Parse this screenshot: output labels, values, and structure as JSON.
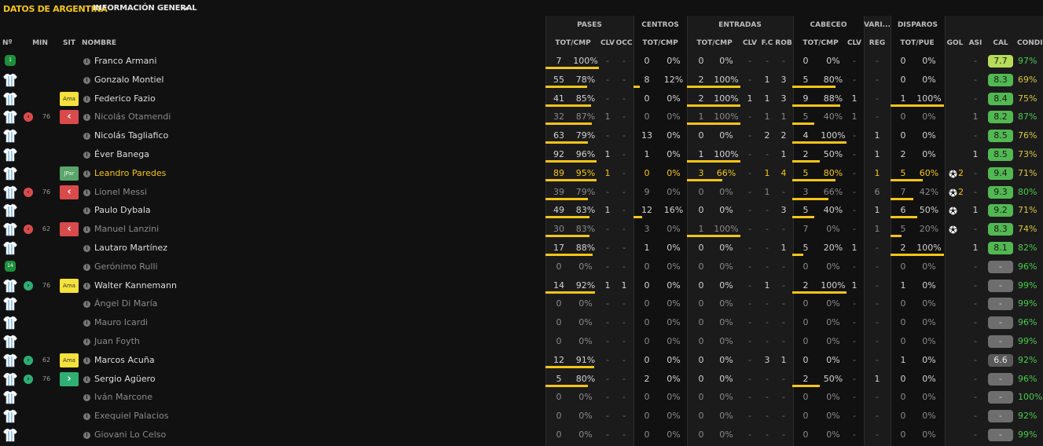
{
  "header": {
    "tab_active": "DATOS DE ARGENTINA",
    "tab_secondary": "INFORMACIÓN GENERAL"
  },
  "groups": {
    "pases": "PASES",
    "centros": "CENTROS",
    "entradas": "ENTRADAS",
    "cabeceo": "CABECEO",
    "varios": "VARI...",
    "disparos": "DISPAROS"
  },
  "columns": {
    "num": "Nº",
    "min": "MIN",
    "sit": "SIT",
    "nombre": "NOMBRE",
    "pases_totcmp": "TOT/CMP",
    "pases_clv": "CLV",
    "pases_occ": "OCC",
    "centros_totcmp": "TOT/CMP",
    "entradas_totcmp": "TOT/CMP",
    "entradas_clv": "CLV",
    "entradas_fc": "F.C",
    "entradas_rob": "ROB",
    "cabeceo_totcmp": "TOT/CMP",
    "cabeceo_clv": "CLV",
    "varios_reg": "REG",
    "disparos_totpue": "TOT/PUE",
    "gol": "GOL",
    "asi": "ASI",
    "cal": "CAL",
    "condicion": "CONDIC"
  },
  "colors": {
    "accent": "#f5c518",
    "rating_green": "#52b852",
    "rating_light": "#b6dc5a",
    "rating_grey": "#6e6e6e",
    "cond_green": "#4cc94c",
    "cond_yellow": "#d9c640"
  },
  "players": [
    {
      "name": "Franco Armani",
      "status": "active",
      "kit": "gk",
      "num": "1",
      "circle": "",
      "min": "",
      "sit": "",
      "pas": [
        "7",
        "100%"
      ],
      "pasbar": 1,
      "pclv": "-",
      "pocc": "-",
      "cen": [
        "0",
        "0%"
      ],
      "cenbar": 0,
      "ent": [
        "0",
        "0%"
      ],
      "entbar": 0,
      "eclv": "-",
      "efc": "-",
      "erob": "-",
      "cab": [
        "0",
        "0%"
      ],
      "cabbar": 0,
      "cclv": "-",
      "reg": "-",
      "dis": [
        "0",
        "0%"
      ],
      "disbar": 0,
      "gol": "",
      "asi": "-",
      "cal": "7.7",
      "calc": "light",
      "cond": "97%",
      "condc": "green"
    },
    {
      "name": "Gonzalo Montiel",
      "status": "active",
      "kit": "shirt",
      "num": "",
      "circle": "",
      "min": "",
      "sit": "",
      "pas": [
        "55",
        "78%"
      ],
      "pasbar": 0.78,
      "pclv": "-",
      "pocc": "-",
      "cen": [
        "8",
        "12%"
      ],
      "cenbar": 0.12,
      "ent": [
        "2",
        "100%"
      ],
      "entbar": 1,
      "eclv": "-",
      "efc": "1",
      "erob": "3",
      "cab": [
        "5",
        "80%"
      ],
      "cabbar": 0.8,
      "cclv": "-",
      "reg": "-",
      "dis": [
        "0",
        "0%"
      ],
      "disbar": 0,
      "gol": "",
      "asi": "-",
      "cal": "8.3",
      "calc": "green",
      "cond": "69%",
      "condc": "yellow"
    },
    {
      "name": "Federico Fazio",
      "status": "active",
      "kit": "shirt",
      "num": "",
      "circle": "",
      "min": "",
      "sit": "Ama",
      "pas": [
        "41",
        "85%"
      ],
      "pasbar": 0.85,
      "pclv": "-",
      "pocc": "-",
      "cen": [
        "0",
        "0%"
      ],
      "cenbar": 0,
      "ent": [
        "2",
        "100%"
      ],
      "entbar": 1,
      "eclv": "1",
      "efc": "1",
      "erob": "3",
      "cab": [
        "9",
        "88%"
      ],
      "cabbar": 0.88,
      "cclv": "1",
      "reg": "-",
      "dis": [
        "1",
        "100%"
      ],
      "disbar": 1,
      "gol": "",
      "asi": "-",
      "cal": "8.4",
      "calc": "green",
      "cond": "75%",
      "condc": "yellow"
    },
    {
      "name": "Nicolás Otamendi",
      "status": "sub",
      "kit": "shirt",
      "num": "",
      "circle": "out",
      "min": "76",
      "sit": "out",
      "pas": [
        "32",
        "87%"
      ],
      "pasbar": 0.87,
      "pclv": "1",
      "pocc": "-",
      "cen": [
        "0",
        "0%"
      ],
      "cenbar": 0,
      "ent": [
        "1",
        "100%"
      ],
      "entbar": 1,
      "eclv": "-",
      "efc": "1",
      "erob": "1",
      "cab": [
        "5",
        "40%"
      ],
      "cabbar": 0.4,
      "cclv": "1",
      "reg": "-",
      "dis": [
        "0",
        "0%"
      ],
      "disbar": 0,
      "gol": "",
      "asi": "1",
      "cal": "8.2",
      "calc": "green",
      "cond": "87%",
      "condc": "green"
    },
    {
      "name": "Nicolás Tagliafico",
      "status": "active",
      "kit": "shirt",
      "num": "",
      "circle": "",
      "min": "",
      "sit": "",
      "pas": [
        "63",
        "79%"
      ],
      "pasbar": 0.79,
      "pclv": "-",
      "pocc": "-",
      "cen": [
        "13",
        "0%"
      ],
      "cenbar": 0,
      "ent": [
        "0",
        "0%"
      ],
      "entbar": 0,
      "eclv": "-",
      "efc": "2",
      "erob": "2",
      "cab": [
        "4",
        "100%"
      ],
      "cabbar": 1,
      "cclv": "-",
      "reg": "1",
      "dis": [
        "0",
        "0%"
      ],
      "disbar": 0,
      "gol": "",
      "asi": "-",
      "cal": "8.5",
      "calc": "green",
      "cond": "76%",
      "condc": "yellow"
    },
    {
      "name": "Éver Banega",
      "status": "active",
      "kit": "shirt",
      "num": "",
      "circle": "",
      "min": "",
      "sit": "",
      "pas": [
        "92",
        "96%"
      ],
      "pasbar": 0.96,
      "pclv": "1",
      "pocc": "-",
      "cen": [
        "1",
        "0%"
      ],
      "cenbar": 0,
      "ent": [
        "1",
        "100%"
      ],
      "entbar": 1,
      "eclv": "-",
      "efc": "-",
      "erob": "1",
      "cab": [
        "2",
        "50%"
      ],
      "cabbar": 0.5,
      "cclv": "-",
      "reg": "1",
      "dis": [
        "2",
        "0%"
      ],
      "disbar": 0,
      "gol": "",
      "asi": "1",
      "cal": "8.5",
      "calc": "green",
      "cond": "73%",
      "condc": "yellow"
    },
    {
      "name": "Leandro Paredes",
      "status": "highlight",
      "kit": "shirt",
      "num": "",
      "circle": "",
      "min": "",
      "sit": "JPar",
      "pas": [
        "89",
        "95%"
      ],
      "pasbar": 0.95,
      "pclv": "1",
      "pocc": "-",
      "cen": [
        "0",
        "0%"
      ],
      "cenbar": 0,
      "ent": [
        "3",
        "66%"
      ],
      "entbar": 0.66,
      "eclv": "-",
      "efc": "1",
      "erob": "4",
      "cab": [
        "5",
        "80%"
      ],
      "cabbar": 0.8,
      "cclv": "-",
      "reg": "1",
      "dis": [
        "5",
        "60%"
      ],
      "disbar": 0.6,
      "gol": "2",
      "asi": "-",
      "cal": "9.4",
      "calc": "green",
      "cond": "71%",
      "condc": "yellow"
    },
    {
      "name": "Lionel Messi",
      "status": "sub",
      "kit": "shirt",
      "num": "",
      "circle": "out",
      "min": "76",
      "sit": "out",
      "pas": [
        "39",
        "79%"
      ],
      "pasbar": 0.79,
      "pclv": "-",
      "pocc": "-",
      "cen": [
        "9",
        "0%"
      ],
      "cenbar": 0,
      "ent": [
        "0",
        "0%"
      ],
      "entbar": 0,
      "eclv": "-",
      "efc": "1",
      "erob": "-",
      "cab": [
        "3",
        "66%"
      ],
      "cabbar": 0.66,
      "cclv": "-",
      "reg": "6",
      "dis": [
        "7",
        "42%"
      ],
      "disbar": 0.42,
      "gol": "2",
      "asi": "-",
      "cal": "9.3",
      "calc": "green",
      "cond": "80%",
      "condc": "green"
    },
    {
      "name": "Paulo Dybala",
      "status": "active",
      "kit": "shirt",
      "num": "",
      "circle": "",
      "min": "",
      "sit": "",
      "pas": [
        "49",
        "83%"
      ],
      "pasbar": 0.83,
      "pclv": "1",
      "pocc": "-",
      "cen": [
        "12",
        "16%"
      ],
      "cenbar": 0.16,
      "ent": [
        "0",
        "0%"
      ],
      "entbar": 0,
      "eclv": "-",
      "efc": "-",
      "erob": "3",
      "cab": [
        "5",
        "40%"
      ],
      "cabbar": 0.4,
      "cclv": "-",
      "reg": "1",
      "dis": [
        "6",
        "50%"
      ],
      "disbar": 0.5,
      "gol": "1",
      "asi": "1",
      "cal": "9.2",
      "calc": "green",
      "cond": "71%",
      "condc": "yellow"
    },
    {
      "name": "Manuel Lanzini",
      "status": "sub",
      "kit": "shirt",
      "num": "",
      "circle": "out",
      "min": "62",
      "sit": "out",
      "pas": [
        "30",
        "83%"
      ],
      "pasbar": 0.83,
      "pclv": "-",
      "pocc": "-",
      "cen": [
        "3",
        "0%"
      ],
      "cenbar": 0,
      "ent": [
        "1",
        "100%"
      ],
      "entbar": 1,
      "eclv": "-",
      "efc": "-",
      "erob": "-",
      "cab": [
        "7",
        "0%"
      ],
      "cabbar": 0,
      "cclv": "-",
      "reg": "1",
      "dis": [
        "5",
        "20%"
      ],
      "disbar": 0.2,
      "gol": "1",
      "asi": "-",
      "cal": "8.3",
      "calc": "green",
      "cond": "74%",
      "condc": "yellow"
    },
    {
      "name": "Lautaro Martínez",
      "status": "active",
      "kit": "shirt",
      "num": "",
      "circle": "",
      "min": "",
      "sit": "",
      "pas": [
        "17",
        "88%"
      ],
      "pasbar": 0.88,
      "pclv": "-",
      "pocc": "-",
      "cen": [
        "1",
        "0%"
      ],
      "cenbar": 0,
      "ent": [
        "0",
        "0%"
      ],
      "entbar": 0,
      "eclv": "-",
      "efc": "-",
      "erob": "1",
      "cab": [
        "5",
        "20%"
      ],
      "cabbar": 0.2,
      "cclv": "1",
      "reg": "-",
      "dis": [
        "2",
        "100%"
      ],
      "disbar": 1,
      "gol": "",
      "asi": "1",
      "cal": "8.1",
      "calc": "green",
      "cond": "82%",
      "condc": "green"
    },
    {
      "name": "Gerónimo Rulli",
      "status": "sub",
      "kit": "gk",
      "num": "14",
      "circle": "",
      "min": "",
      "sit": "",
      "pas": [
        "0",
        "0%"
      ],
      "pasbar": 0,
      "pclv": "-",
      "pocc": "-",
      "cen": [
        "0",
        "0%"
      ],
      "cenbar": 0,
      "ent": [
        "0",
        "0%"
      ],
      "entbar": 0,
      "eclv": "-",
      "efc": "-",
      "erob": "-",
      "cab": [
        "0",
        "0%"
      ],
      "cabbar": 0,
      "cclv": "-",
      "reg": "-",
      "dis": [
        "0",
        "0%"
      ],
      "disbar": 0,
      "gol": "",
      "asi": "-",
      "cal": "-",
      "calc": "grey",
      "cond": "96%",
      "condc": "green"
    },
    {
      "name": "Walter Kannemann",
      "status": "active",
      "kit": "shirt",
      "num": "",
      "circle": "in",
      "min": "76",
      "sit": "Ama",
      "pas": [
        "14",
        "92%"
      ],
      "pasbar": 0.92,
      "pclv": "1",
      "pocc": "1",
      "cen": [
        "0",
        "0%"
      ],
      "cenbar": 0,
      "ent": [
        "0",
        "0%"
      ],
      "entbar": 0,
      "eclv": "-",
      "efc": "1",
      "erob": "-",
      "cab": [
        "2",
        "100%"
      ],
      "cabbar": 1,
      "cclv": "1",
      "reg": "-",
      "dis": [
        "1",
        "0%"
      ],
      "disbar": 0,
      "gol": "",
      "asi": "-",
      "cal": "-",
      "calc": "grey",
      "cond": "99%",
      "condc": "green"
    },
    {
      "name": "Ángel Di María",
      "status": "sub",
      "kit": "shirt",
      "num": "",
      "circle": "",
      "min": "",
      "sit": "",
      "pas": [
        "0",
        "0%"
      ],
      "pasbar": 0,
      "pclv": "-",
      "pocc": "-",
      "cen": [
        "0",
        "0%"
      ],
      "cenbar": 0,
      "ent": [
        "0",
        "0%"
      ],
      "entbar": 0,
      "eclv": "-",
      "efc": "-",
      "erob": "-",
      "cab": [
        "0",
        "0%"
      ],
      "cabbar": 0,
      "cclv": "-",
      "reg": "-",
      "dis": [
        "0",
        "0%"
      ],
      "disbar": 0,
      "gol": "",
      "asi": "-",
      "cal": "-",
      "calc": "grey",
      "cond": "99%",
      "condc": "green"
    },
    {
      "name": "Mauro Icardi",
      "status": "sub",
      "kit": "shirt",
      "num": "",
      "circle": "",
      "min": "",
      "sit": "",
      "pas": [
        "0",
        "0%"
      ],
      "pasbar": 0,
      "pclv": "-",
      "pocc": "-",
      "cen": [
        "0",
        "0%"
      ],
      "cenbar": 0,
      "ent": [
        "0",
        "0%"
      ],
      "entbar": 0,
      "eclv": "-",
      "efc": "-",
      "erob": "-",
      "cab": [
        "0",
        "0%"
      ],
      "cabbar": 0,
      "cclv": "-",
      "reg": "-",
      "dis": [
        "0",
        "0%"
      ],
      "disbar": 0,
      "gol": "",
      "asi": "-",
      "cal": "-",
      "calc": "grey",
      "cond": "96%",
      "condc": "green"
    },
    {
      "name": "Juan Foyth",
      "status": "sub",
      "kit": "shirt",
      "num": "",
      "circle": "",
      "min": "",
      "sit": "",
      "pas": [
        "0",
        "0%"
      ],
      "pasbar": 0,
      "pclv": "-",
      "pocc": "-",
      "cen": [
        "0",
        "0%"
      ],
      "cenbar": 0,
      "ent": [
        "0",
        "0%"
      ],
      "entbar": 0,
      "eclv": "-",
      "efc": "-",
      "erob": "-",
      "cab": [
        "0",
        "0%"
      ],
      "cabbar": 0,
      "cclv": "-",
      "reg": "-",
      "dis": [
        "0",
        "0%"
      ],
      "disbar": 0,
      "gol": "",
      "asi": "-",
      "cal": "-",
      "calc": "grey",
      "cond": "99%",
      "condc": "green"
    },
    {
      "name": "Marcos Acuña",
      "status": "active",
      "kit": "shirt",
      "num": "",
      "circle": "in",
      "min": "62",
      "sit": "Ama",
      "pas": [
        "12",
        "91%"
      ],
      "pasbar": 0.91,
      "pclv": "-",
      "pocc": "-",
      "cen": [
        "0",
        "0%"
      ],
      "cenbar": 0,
      "ent": [
        "0",
        "0%"
      ],
      "entbar": 0,
      "eclv": "-",
      "efc": "3",
      "erob": "1",
      "cab": [
        "0",
        "0%"
      ],
      "cabbar": 0,
      "cclv": "-",
      "reg": "-",
      "dis": [
        "1",
        "0%"
      ],
      "disbar": 0,
      "gol": "",
      "asi": "-",
      "cal": "6.6",
      "calc": "dark",
      "cond": "92%",
      "condc": "green"
    },
    {
      "name": "Sergio Agüero",
      "status": "active",
      "kit": "shirt",
      "num": "",
      "circle": "in",
      "min": "76",
      "sit": "in",
      "pas": [
        "5",
        "80%"
      ],
      "pasbar": 0.8,
      "pclv": "-",
      "pocc": "-",
      "cen": [
        "2",
        "0%"
      ],
      "cenbar": 0,
      "ent": [
        "0",
        "0%"
      ],
      "entbar": 0,
      "eclv": "-",
      "efc": "-",
      "erob": "-",
      "cab": [
        "2",
        "50%"
      ],
      "cabbar": 0.5,
      "cclv": "-",
      "reg": "1",
      "dis": [
        "0",
        "0%"
      ],
      "disbar": 0,
      "gol": "",
      "asi": "-",
      "cal": "-",
      "calc": "grey",
      "cond": "96%",
      "condc": "green"
    },
    {
      "name": "Iván Marcone",
      "status": "sub",
      "kit": "shirt",
      "num": "",
      "circle": "",
      "min": "",
      "sit": "",
      "pas": [
        "0",
        "0%"
      ],
      "pasbar": 0,
      "pclv": "-",
      "pocc": "-",
      "cen": [
        "0",
        "0%"
      ],
      "cenbar": 0,
      "ent": [
        "0",
        "0%"
      ],
      "entbar": 0,
      "eclv": "-",
      "efc": "-",
      "erob": "-",
      "cab": [
        "0",
        "0%"
      ],
      "cabbar": 0,
      "cclv": "-",
      "reg": "-",
      "dis": [
        "0",
        "0%"
      ],
      "disbar": 0,
      "gol": "",
      "asi": "-",
      "cal": "-",
      "calc": "grey",
      "cond": "100%",
      "condc": "green"
    },
    {
      "name": "Exequiel Palacios",
      "status": "sub",
      "kit": "shirt",
      "num": "",
      "circle": "",
      "min": "",
      "sit": "",
      "pas": [
        "0",
        "0%"
      ],
      "pasbar": 0,
      "pclv": "-",
      "pocc": "-",
      "cen": [
        "0",
        "0%"
      ],
      "cenbar": 0,
      "ent": [
        "0",
        "0%"
      ],
      "entbar": 0,
      "eclv": "-",
      "efc": "-",
      "erob": "-",
      "cab": [
        "0",
        "0%"
      ],
      "cabbar": 0,
      "cclv": "-",
      "reg": "-",
      "dis": [
        "0",
        "0%"
      ],
      "disbar": 0,
      "gol": "",
      "asi": "-",
      "cal": "-",
      "calc": "grey",
      "cond": "92%",
      "condc": "green"
    },
    {
      "name": "Giovani Lo Celso",
      "status": "sub",
      "kit": "shirt",
      "num": "",
      "circle": "",
      "min": "",
      "sit": "",
      "pas": [
        "0",
        "0%"
      ],
      "pasbar": 0,
      "pclv": "-",
      "pocc": "-",
      "cen": [
        "0",
        "0%"
      ],
      "cenbar": 0,
      "ent": [
        "0",
        "0%"
      ],
      "entbar": 0,
      "eclv": "-",
      "efc": "-",
      "erob": "-",
      "cab": [
        "0",
        "0%"
      ],
      "cabbar": 0,
      "cclv": "-",
      "reg": "-",
      "dis": [
        "0",
        "0%"
      ],
      "disbar": 0,
      "gol": "",
      "asi": "-",
      "cal": "-",
      "calc": "grey",
      "cond": "99%",
      "condc": "green"
    }
  ]
}
